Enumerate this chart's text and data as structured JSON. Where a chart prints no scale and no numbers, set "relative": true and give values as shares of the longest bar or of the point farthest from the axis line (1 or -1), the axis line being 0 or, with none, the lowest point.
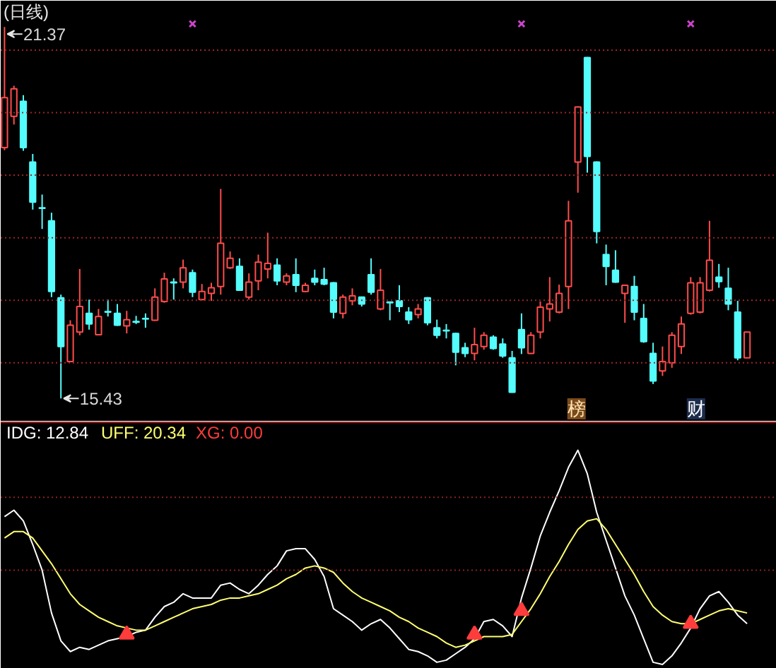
{
  "chart_data": [
    {
      "type": "candlestick",
      "title": "(日线)",
      "categories": [
        null,
        null,
        null,
        null,
        null,
        null,
        null,
        null,
        null,
        null,
        null,
        null,
        null,
        null,
        null,
        null,
        null,
        null,
        null,
        null,
        null,
        null,
        null,
        null,
        null,
        null,
        null,
        null,
        null,
        null,
        null,
        null,
        null,
        null,
        null,
        null,
        null,
        null,
        null,
        null,
        null,
        null,
        null,
        null,
        null,
        null,
        null,
        null,
        null,
        null,
        null,
        null,
        null,
        null,
        null,
        null,
        null,
        null,
        null,
        null,
        null,
        null,
        null,
        null,
        null,
        null,
        null,
        null,
        null,
        null,
        null,
        null,
        null,
        null,
        null,
        null,
        null,
        null,
        null,
        null
      ],
      "ohlc": [
        [
          19.44,
          21.37,
          19.4,
          20.24
        ],
        [
          19.94,
          20.43,
          19.81,
          20.38
        ],
        [
          20.18,
          20.28,
          19.39,
          19.44
        ],
        [
          19.21,
          19.34,
          18.45,
          18.57
        ],
        [
          18.48,
          18.69,
          18.14,
          18.47
        ],
        [
          18.27,
          18.4,
          17.05,
          17.14
        ],
        [
          17.04,
          17.09,
          15.43,
          16.26
        ],
        [
          16.02,
          16.68,
          16.01,
          16.6
        ],
        [
          16.49,
          17.5,
          16.44,
          16.9
        ],
        [
          16.79,
          17.01,
          16.53,
          16.62
        ],
        [
          16.45,
          16.86,
          16.44,
          16.74
        ],
        [
          16.82,
          17.01,
          16.74,
          16.81
        ],
        [
          16.79,
          16.94,
          16.59,
          16.6
        ],
        [
          16.59,
          16.83,
          16.47,
          16.69
        ],
        [
          16.66,
          16.75,
          16.62,
          16.65
        ],
        [
          16.71,
          16.79,
          16.56,
          16.7
        ],
        [
          16.68,
          17.19,
          16.67,
          17.05
        ],
        [
          16.98,
          17.44,
          16.96,
          17.34
        ],
        [
          17.29,
          17.35,
          17.01,
          17.28
        ],
        [
          17.29,
          17.65,
          17.19,
          17.52
        ],
        [
          17.44,
          17.49,
          17.05,
          17.13
        ],
        [
          17.01,
          17.26,
          17.0,
          17.14
        ],
        [
          17.11,
          17.28,
          16.99,
          17.2
        ],
        [
          17.22,
          18.78,
          17.09,
          17.91
        ],
        [
          17.52,
          17.78,
          17.5,
          17.67
        ],
        [
          17.54,
          17.67,
          17.15,
          17.16
        ],
        [
          17.05,
          17.43,
          17.01,
          17.29
        ],
        [
          17.31,
          17.73,
          17.16,
          17.61
        ],
        [
          17.5,
          18.08,
          17.35,
          17.59
        ],
        [
          17.56,
          17.67,
          17.24,
          17.31
        ],
        [
          17.29,
          17.43,
          17.24,
          17.39
        ],
        [
          17.41,
          17.67,
          17.13,
          17.24
        ],
        [
          17.14,
          17.28,
          17.13,
          17.24
        ],
        [
          17.35,
          17.49,
          17.24,
          17.29
        ],
        [
          17.33,
          17.52,
          17.24,
          17.26
        ],
        [
          17.28,
          17.29,
          16.71,
          16.81
        ],
        [
          16.79,
          17.09,
          16.71,
          17.05
        ],
        [
          16.99,
          17.19,
          16.92,
          17.07
        ],
        [
          17.05,
          17.06,
          16.9,
          16.94
        ],
        [
          17.41,
          17.67,
          17.09,
          17.13
        ],
        [
          16.86,
          17.5,
          16.84,
          17.16
        ],
        [
          16.97,
          16.98,
          16.68,
          16.96
        ],
        [
          16.99,
          17.24,
          16.81,
          16.9
        ],
        [
          16.81,
          16.89,
          16.62,
          16.69
        ],
        [
          16.77,
          16.94,
          16.71,
          16.86
        ],
        [
          17.04,
          17.05,
          16.6,
          16.64
        ],
        [
          16.56,
          16.69,
          16.39,
          16.44
        ],
        [
          16.52,
          16.62,
          16.39,
          16.51
        ],
        [
          16.47,
          16.48,
          15.96,
          16.17
        ],
        [
          16.24,
          16.32,
          16.09,
          16.15
        ],
        [
          16.15,
          16.56,
          16.04,
          16.29
        ],
        [
          16.26,
          16.49,
          16.21,
          16.44
        ],
        [
          16.41,
          16.44,
          16.21,
          16.23
        ],
        [
          16.3,
          16.39,
          16.08,
          16.11
        ],
        [
          16.08,
          16.19,
          15.52,
          15.53
        ],
        [
          16.53,
          16.79,
          16.14,
          16.24
        ],
        [
          16.15,
          16.49,
          16.14,
          16.44
        ],
        [
          16.49,
          16.98,
          16.39,
          16.89
        ],
        [
          16.86,
          17.37,
          16.66,
          16.94
        ],
        [
          16.81,
          17.25,
          16.79,
          17.11
        ],
        [
          17.22,
          18.59,
          16.86,
          18.27
        ],
        [
          19.21,
          20.1,
          18.72,
          20.09
        ],
        [
          20.88,
          20.89,
          19.04,
          19.3
        ],
        [
          19.21,
          19.22,
          17.91,
          18.1
        ],
        [
          17.73,
          17.89,
          17.24,
          17.54
        ],
        [
          17.48,
          17.8,
          17.28,
          17.29
        ],
        [
          17.11,
          17.25,
          16.64,
          17.24
        ],
        [
          17.22,
          17.39,
          16.68,
          16.81
        ],
        [
          16.71,
          16.94,
          16.32,
          16.34
        ],
        [
          16.15,
          16.32,
          15.66,
          15.71
        ],
        [
          15.87,
          16.26,
          15.79,
          16.02
        ],
        [
          16.0,
          16.49,
          15.92,
          16.44
        ],
        [
          16.26,
          16.74,
          16.14,
          16.62
        ],
        [
          16.79,
          17.37,
          16.77,
          17.28
        ],
        [
          16.81,
          17.37,
          16.79,
          17.28
        ],
        [
          17.16,
          18.27,
          17.14,
          17.64
        ],
        [
          17.37,
          17.58,
          17.2,
          17.3
        ],
        [
          17.19,
          17.52,
          16.84,
          16.94
        ],
        [
          16.81,
          16.99,
          16.04,
          16.08
        ],
        [
          16.08,
          16.49,
          16.08,
          16.49
        ]
      ],
      "colors": [
        "#ff4c4c",
        "#ff4c4c",
        "#54fcfc",
        "#54fcfc",
        "#54fcfc",
        "#54fcfc",
        "#54fcfc",
        "#ff4c4c",
        "#ff4c4c",
        "#54fcfc",
        "#ff4c4c",
        "#54fcfc",
        "#54fcfc",
        "#ff4c4c",
        "#54fcfc",
        "#54fcfc",
        "#ff4c4c",
        "#ff4c4c",
        "#54fcfc",
        "#ff4c4c",
        "#54fcfc",
        "#ff4c4c",
        "#ff4c4c",
        "#ff4c4c",
        "#ff4c4c",
        "#54fcfc",
        "#ff4c4c",
        "#ff4c4c",
        "#ff4c4c",
        "#54fcfc",
        "#ff4c4c",
        "#54fcfc",
        "#ff4c4c",
        "#54fcfc",
        "#54fcfc",
        "#54fcfc",
        "#ff4c4c",
        "#ff4c4c",
        "#54fcfc",
        "#54fcfc",
        "#ff4c4c",
        "#54fcfc",
        "#54fcfc",
        "#54fcfc",
        "#ff4c4c",
        "#54fcfc",
        "#54fcfc",
        "#54fcfc",
        "#54fcfc",
        "#54fcfc",
        "#ff4c4c",
        "#ff4c4c",
        "#54fcfc",
        "#54fcfc",
        "#54fcfc",
        "#54fcfc",
        "#ff4c4c",
        "#ff4c4c",
        "#ff4c4c",
        "#ff4c4c",
        "#ff4c4c",
        "#ff4c4c",
        "#54fcfc",
        "#54fcfc",
        "#54fcfc",
        "#54fcfc",
        "#ff4c4c",
        "#54fcfc",
        "#54fcfc",
        "#54fcfc",
        "#ff4c4c",
        "#ff4c4c",
        "#ff4c4c",
        "#ff4c4c",
        "#ff4c4c",
        "#ff4c4c",
        "#54fcfc",
        "#54fcfc",
        "#54fcfc",
        "#ff4c4c"
      ],
      "series": [
        {
          "type": "scatter",
          "color": "#cc44cc",
          "marker": "cross",
          "values": [
            null,
            null,
            null,
            null,
            null,
            null,
            null,
            null,
            null,
            null,
            null,
            null,
            null,
            null,
            null,
            null,
            null,
            null,
            null,
            null,
            21.42,
            null,
            null,
            null,
            null,
            null,
            null,
            null,
            null,
            null,
            null,
            null,
            null,
            null,
            null,
            null,
            null,
            null,
            null,
            null,
            null,
            null,
            null,
            null,
            null,
            null,
            null,
            null,
            null,
            null,
            null,
            null,
            null,
            null,
            null,
            21.42,
            null,
            null,
            null,
            null,
            null,
            null,
            null,
            null,
            null,
            null,
            null,
            null,
            null,
            null,
            null,
            null,
            null,
            21.42,
            null,
            null,
            null,
            null,
            null,
            null
          ]
        }
      ],
      "ylim": [
        15.06,
        21.79
      ],
      "yticks": [
        {
          "value": 16,
          "label": null
        },
        {
          "value": 17,
          "label": null
        },
        {
          "value": 18,
          "label": null
        },
        {
          "value": 19,
          "label": null
        },
        {
          "value": 20,
          "label": null
        },
        {
          "value": 21,
          "label": null
        }
      ],
      "grid": "y",
      "tick_labels": false,
      "annotations": [
        "21.37",
        "15.43",
        "榜",
        "财"
      ]
    },
    {
      "type": "line",
      "relative": true,
      "categories": [
        null,
        null,
        null,
        null,
        null,
        null,
        null,
        null,
        null,
        null,
        null,
        null,
        null,
        null,
        null,
        null,
        null,
        null,
        null,
        null,
        null,
        null,
        null,
        null,
        null,
        null,
        null,
        null,
        null,
        null,
        null,
        null,
        null,
        null,
        null,
        null,
        null,
        null,
        null,
        null,
        null,
        null,
        null,
        null,
        null,
        null,
        null,
        null,
        null,
        null,
        null,
        null,
        null,
        null,
        null,
        null,
        null,
        null,
        null,
        null,
        null,
        null,
        null,
        null,
        null,
        null,
        null,
        null,
        null,
        null,
        null,
        null,
        null,
        null,
        null,
        null,
        null,
        null,
        null,
        null
      ],
      "series": [
        {
          "name": "IDG: 12.84",
          "color": "#ffffff",
          "values": [
            0.69,
            0.72,
            0.67,
            0.56,
            0.44,
            0.24,
            0.11,
            0.06,
            0.08,
            0.07,
            0.09,
            0.11,
            0.12,
            0.13,
            0.15,
            0.16,
            0.22,
            0.27,
            0.29,
            0.33,
            0.31,
            0.31,
            0.31,
            0.37,
            0.38,
            0.35,
            0.33,
            0.37,
            0.42,
            0.46,
            0.53,
            0.54,
            0.54,
            0.49,
            0.41,
            0.26,
            0.23,
            0.2,
            0.16,
            0.19,
            0.21,
            0.17,
            0.12,
            0.07,
            0.06,
            0.04,
            0.01,
            0.02,
            0.05,
            0.08,
            0.12,
            0.2,
            0.21,
            0.18,
            0.13,
            0.31,
            0.45,
            0.6,
            0.71,
            0.81,
            0.92,
            1,
            0.89,
            0.71,
            0.58,
            0.45,
            0.32,
            0.23,
            0.12,
            0.01,
            0,
            0.04,
            0.1,
            0.17,
            0.26,
            0.32,
            0.34,
            0.29,
            0.23,
            0.19
          ]
        },
        {
          "name": "UFF: 20.34",
          "color": "#ffff70",
          "values": [
            0.59,
            0.62,
            0.62,
            0.59,
            0.53,
            0.47,
            0.4,
            0.33,
            0.28,
            0.25,
            0.22,
            0.2,
            0.18,
            0.17,
            0.16,
            0.16,
            0.18,
            0.2,
            0.22,
            0.24,
            0.26,
            0.27,
            0.28,
            0.3,
            0.31,
            0.31,
            0.32,
            0.33,
            0.35,
            0.37,
            0.4,
            0.42,
            0.45,
            0.46,
            0.45,
            0.43,
            0.38,
            0.34,
            0.31,
            0.29,
            0.27,
            0.25,
            0.22,
            0.2,
            0.17,
            0.15,
            0.13,
            0.1,
            0.08,
            0.09,
            0.11,
            0.13,
            0.13,
            0.13,
            0.14,
            0.2,
            0.26,
            0.33,
            0.41,
            0.48,
            0.56,
            0.63,
            0.67,
            0.68,
            0.63,
            0.56,
            0.49,
            0.42,
            0.34,
            0.27,
            0.23,
            0.2,
            0.19,
            0.19,
            0.21,
            0.23,
            0.25,
            0.26,
            0.25,
            0.24
          ]
        },
        {
          "name": "XG: 0.00",
          "type": "scatter",
          "marker": "triangle",
          "color": "#ff3c3c",
          "values": [
            null,
            null,
            null,
            null,
            null,
            null,
            null,
            null,
            null,
            null,
            null,
            null,
            null,
            0.14,
            null,
            null,
            null,
            null,
            null,
            null,
            null,
            null,
            null,
            null,
            null,
            null,
            null,
            null,
            null,
            null,
            null,
            null,
            null,
            null,
            null,
            null,
            null,
            null,
            null,
            null,
            null,
            null,
            null,
            null,
            null,
            null,
            null,
            null,
            null,
            null,
            0.14,
            null,
            null,
            null,
            null,
            0.25,
            null,
            null,
            null,
            null,
            null,
            null,
            null,
            null,
            null,
            null,
            null,
            null,
            null,
            null,
            null,
            null,
            null,
            0.19,
            null,
            null,
            null,
            null,
            null,
            null
          ]
        }
      ],
      "ref_lines": [
        {
          "axis": "y",
          "value": 0.78,
          "color": "#8a2222",
          "line_style": "dotted"
        },
        {
          "axis": "y",
          "value": 0.44,
          "color": "#8a2222",
          "line_style": "dotted"
        }
      ],
      "legend": "top left",
      "tick_labels": false
    }
  ]
}
